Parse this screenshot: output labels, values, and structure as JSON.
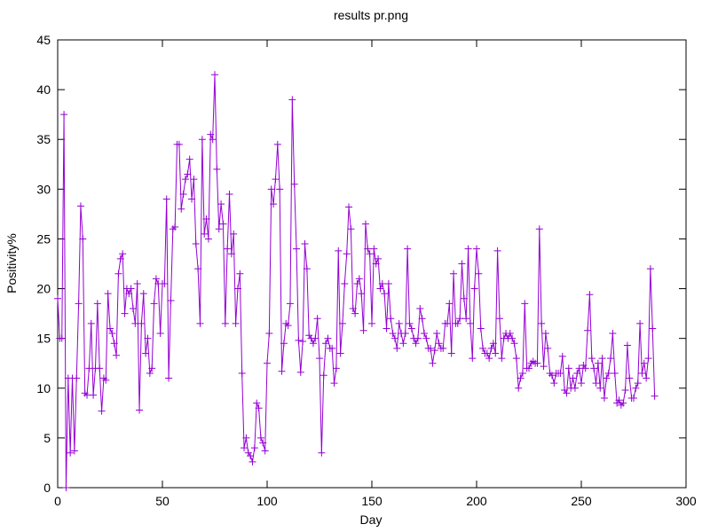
{
  "chart_data": {
    "type": "line",
    "title": "results pr.png",
    "x_label": "Day",
    "y_label": "Positivity%",
    "xlim": [
      0,
      300
    ],
    "xticks": [
      0,
      50,
      100,
      150,
      200,
      250,
      300
    ],
    "ylim": [
      0,
      45
    ],
    "yticks": [
      0,
      5,
      10,
      15,
      20,
      25,
      30,
      35,
      40,
      45
    ],
    "grid": false,
    "marker": "+",
    "x": [
      0,
      1,
      2,
      3,
      4,
      5,
      6,
      7,
      8,
      9,
      10,
      11,
      12,
      13,
      14,
      15,
      16,
      17,
      18,
      19,
      20,
      21,
      22,
      23,
      24,
      25,
      26,
      27,
      28,
      29,
      30,
      31,
      32,
      33,
      34,
      35,
      36,
      37,
      38,
      39,
      40,
      41,
      42,
      43,
      44,
      45,
      46,
      47,
      48,
      49,
      50,
      51,
      52,
      53,
      54,
      55,
      56,
      57,
      58,
      59,
      60,
      61,
      62,
      63,
      64,
      65,
      66,
      67,
      68,
      69,
      70,
      71,
      72,
      73,
      74,
      75,
      76,
      77,
      78,
      79,
      80,
      81,
      82,
      83,
      84,
      85,
      86,
      87,
      88,
      89,
      90,
      91,
      92,
      93,
      94,
      95,
      96,
      97,
      98,
      99,
      100,
      101,
      102,
      103,
      104,
      105,
      106,
      107,
      108,
      109,
      110,
      111,
      112,
      113,
      114,
      115,
      116,
      117,
      118,
      119,
      120,
      121,
      122,
      123,
      124,
      125,
      126,
      127,
      128,
      129,
      130,
      131,
      132,
      133,
      134,
      135,
      136,
      137,
      138,
      139,
      140,
      141,
      142,
      143,
      144,
      145,
      146,
      147,
      148,
      149,
      150,
      151,
      152,
      153,
      154,
      155,
      156,
      157,
      158,
      159,
      160,
      161,
      162,
      163,
      164,
      165,
      166,
      167,
      168,
      169,
      170,
      171,
      172,
      173,
      174,
      175,
      176,
      177,
      178,
      179,
      180,
      181,
      182,
      183,
      184,
      185,
      186,
      187,
      188,
      189,
      190,
      191,
      192,
      193,
      194,
      195,
      196,
      197,
      198,
      199,
      200,
      201,
      202,
      203,
      204,
      205,
      206,
      207,
      208,
      209,
      210,
      211,
      212,
      213,
      214,
      215,
      216,
      217,
      218,
      219,
      220,
      221,
      222,
      223,
      224,
      225,
      226,
      227,
      228,
      229,
      230,
      231,
      232,
      233,
      234,
      235,
      236,
      237,
      238,
      239,
      240,
      241,
      242,
      243,
      244,
      245,
      246,
      247,
      248,
      249,
      250,
      251,
      252,
      253,
      254,
      255,
      256,
      257,
      258,
      259,
      260,
      261,
      262,
      263,
      264,
      265,
      266,
      267,
      268,
      269,
      270,
      271,
      272,
      273,
      274,
      275,
      276,
      277,
      278,
      279,
      280,
      281,
      282,
      283,
      284,
      285
    ],
    "series": [
      {
        "color": "#9400d3",
        "values": [
          19,
          15,
          15,
          37.5,
          0,
          11,
          3.5,
          11,
          3.7,
          11,
          18.5,
          28.3,
          25,
          9.5,
          9.3,
          12,
          16.5,
          9.3,
          12,
          18.5,
          12,
          7.7,
          11,
          10.8,
          19.5,
          16,
          15.5,
          14.5,
          13.3,
          21.5,
          23,
          23.5,
          17.5,
          20,
          19.5,
          20,
          18,
          16.5,
          20.5,
          7.8,
          16.5,
          19.5,
          13.5,
          15,
          11.5,
          12,
          18.5,
          21,
          20.5,
          15.5,
          20.5,
          20.5,
          29,
          11,
          18.8,
          26,
          26.2,
          34.5,
          34.5,
          28,
          29.5,
          31,
          31.5,
          33,
          29,
          31,
          24.5,
          22,
          16.5,
          35,
          25.5,
          27,
          25,
          35.5,
          35,
          41.5,
          32,
          26,
          28.5,
          26.5,
          16.5,
          24,
          29.5,
          23.5,
          25.5,
          16.5,
          20,
          21.5,
          11.5,
          4,
          5,
          3.5,
          3.2,
          2.6,
          4,
          8.5,
          8,
          5,
          4.5,
          3.7,
          12.5,
          15.5,
          30,
          28.5,
          31,
          34.5,
          30,
          11.7,
          14.5,
          16.5,
          16.3,
          18.5,
          39,
          30.5,
          24,
          14.8,
          11.6,
          14.7,
          24.5,
          22,
          15.3,
          15,
          14.5,
          15,
          17,
          13,
          3.5,
          11.3,
          14.5,
          15,
          14,
          14,
          10.5,
          12,
          23.8,
          13.5,
          16.5,
          20.5,
          23.5,
          28.2,
          26,
          18,
          17.5,
          20.5,
          21,
          19.5,
          15.8,
          26.5,
          24,
          23.5,
          16.5,
          24,
          22.5,
          23,
          20,
          20.5,
          19.5,
          16,
          20.5,
          17,
          15.5,
          15,
          14,
          16.5,
          15.5,
          14.5,
          15.5,
          24,
          16.5,
          16,
          15,
          14.5,
          15,
          18,
          17,
          15.5,
          15,
          14,
          14,
          12.5,
          13.8,
          15.5,
          14.5,
          14,
          14,
          16.5,
          16.5,
          18.5,
          13.5,
          21.5,
          16.5,
          16.5,
          17,
          22.5,
          19,
          17,
          24,
          16.5,
          13,
          20,
          24,
          21.5,
          16,
          14,
          13.5,
          13.5,
          13,
          14,
          14.5,
          13.5,
          23.8,
          17,
          13,
          15,
          15.5,
          15,
          15.5,
          15,
          14.5,
          13,
          10,
          11,
          11.5,
          18.5,
          12,
          12,
          12.5,
          12.7,
          12.5,
          12.5,
          26,
          16.5,
          12.2,
          15.5,
          14,
          11.5,
          11.3,
          10.5,
          11.5,
          11.5,
          11.5,
          13.2,
          9.8,
          9.5,
          12,
          10,
          11,
          10,
          11.5,
          12,
          10.5,
          12.3,
          12,
          15.8,
          19.4,
          13,
          12,
          10.5,
          12.5,
          10,
          13,
          9,
          11,
          11.5,
          13,
          15.5,
          11.5,
          8.5,
          8.8,
          8.3,
          8.5,
          9.8,
          14.3,
          11,
          9,
          9,
          10,
          10.5,
          16.5,
          11.5,
          12.5,
          11,
          13,
          22,
          16,
          9.2
        ]
      }
    ]
  }
}
